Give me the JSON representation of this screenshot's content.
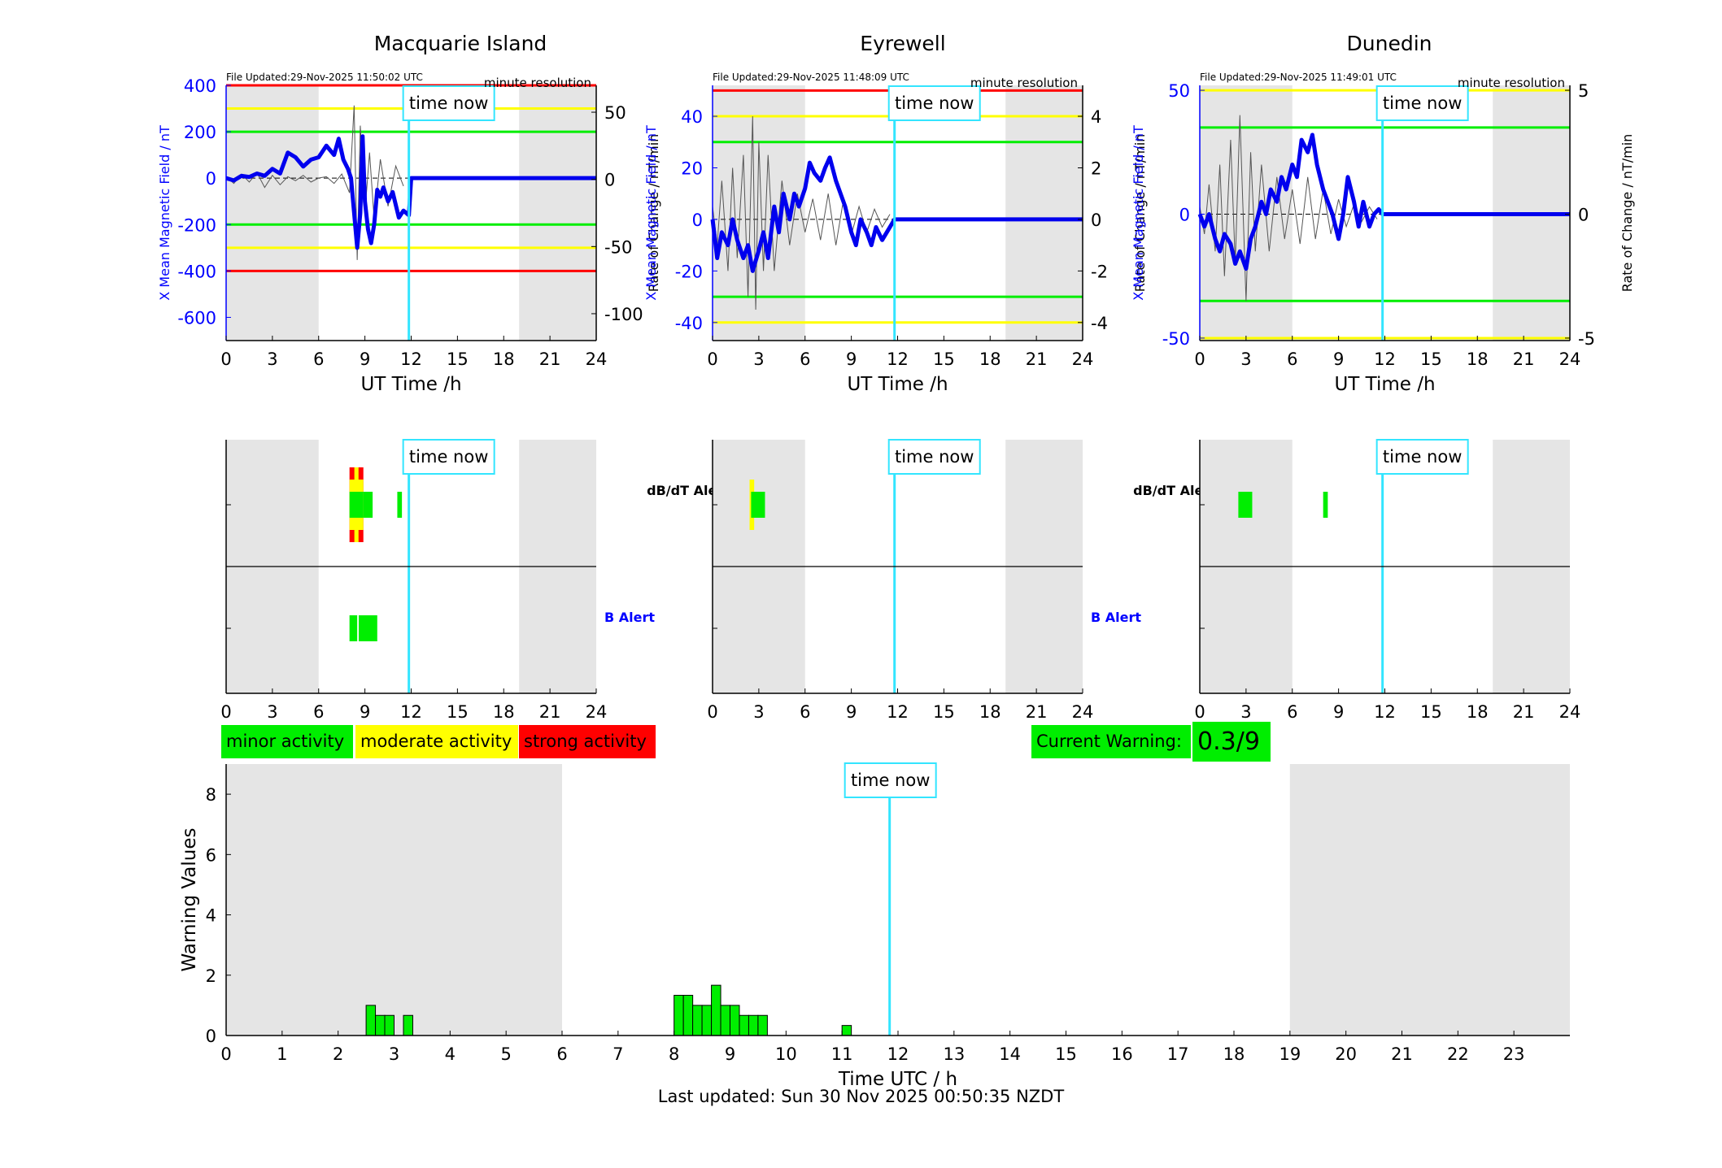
{
  "colors": {
    "shade": "#e5e5e5",
    "red": "#ff0000",
    "yellow": "#ffff00",
    "green": "#00ee00",
    "field": "#0000ee",
    "rate": "#555555",
    "now": "#33e5ff",
    "blue_text": "#0000ff"
  },
  "time_now_label": "time now",
  "footer": "Last updated: Sun 30 Nov 2025 00:50:35 NZDT",
  "legend": {
    "minor": "minor activity",
    "moderate": "moderate activity",
    "strong": "strong activity"
  },
  "current_warning": {
    "label": "Current Warning:",
    "value": "0.3/9"
  },
  "chart_data": [
    {
      "type": "line",
      "title": "Macquarie Island",
      "file_updated": "File Updated:29-Nov-2025 11:50:02 UTC",
      "resolution": "minute resolution",
      "xlabel": "UT Time /h",
      "ylabel_left": "X Mean Magnetic Field / nT",
      "ylabel_right": "Rate of Change / nT/min",
      "xlim": [
        0,
        24
      ],
      "xticks": [
        "0",
        "3",
        "6",
        "9",
        "12",
        "15",
        "18",
        "21",
        "24"
      ],
      "ylim_left": [
        -700,
        400
      ],
      "yticks_left": [
        "400",
        "200",
        "0",
        "-200",
        "-400",
        "-600"
      ],
      "ylim_right": [
        -120,
        70
      ],
      "yticks_right": [
        "50",
        "0",
        "-50",
        "-100"
      ],
      "thresholds": [
        {
          "color": "red",
          "value": 400
        },
        {
          "color": "red",
          "value": -400
        },
        {
          "color": "yellow",
          "value": 300
        },
        {
          "color": "yellow",
          "value": -300
        },
        {
          "color": "green",
          "value": 200
        },
        {
          "color": "green",
          "value": -200
        }
      ],
      "shaded_hours": [
        [
          0,
          6
        ],
        [
          19,
          24
        ]
      ],
      "time_now": 11.85,
      "field_series": {
        "x": [
          0,
          0.5,
          1,
          1.5,
          2,
          2.5,
          3,
          3.5,
          4,
          4.5,
          5,
          5.5,
          6,
          6.5,
          7,
          7.3,
          7.6,
          7.9,
          8.1,
          8.3,
          8.5,
          8.7,
          8.85,
          9,
          9.2,
          9.4,
          9.6,
          9.8,
          10,
          10.2,
          10.5,
          10.8,
          11.2,
          11.5,
          11.85,
          12,
          24
        ],
        "y": [
          0,
          -10,
          10,
          5,
          20,
          10,
          40,
          20,
          110,
          90,
          50,
          80,
          90,
          140,
          100,
          170,
          80,
          40,
          0,
          -150,
          -300,
          -150,
          180,
          -100,
          -220,
          -280,
          -200,
          -50,
          -80,
          -40,
          -100,
          -60,
          -170,
          -140,
          -160,
          0,
          0
        ]
      },
      "rate_series": {
        "x": [
          0,
          0.5,
          1,
          1.5,
          2,
          2.5,
          3,
          3.5,
          4,
          4.5,
          5,
          5.5,
          6,
          6.5,
          7,
          7.5,
          8,
          8.3,
          8.5,
          8.7,
          9,
          9.3,
          9.6,
          10,
          10.5,
          11,
          11.5
        ],
        "y": [
          2,
          -3,
          4,
          -2,
          5,
          -6,
          3,
          -4,
          2,
          -1,
          3,
          -2,
          1,
          2,
          -3,
          4,
          -10,
          55,
          -60,
          40,
          -25,
          20,
          -30,
          15,
          -20,
          10,
          -5
        ]
      },
      "alerts": {
        "dbdt_label": "dB/dT Alert",
        "b_label": "B Alert",
        "dbdt": [
          {
            "start": 8.0,
            "end": 8.9,
            "level": "green"
          },
          {
            "start": 8.0,
            "end": 8.9,
            "level": "yellow"
          },
          {
            "start": 8.0,
            "end": 8.9,
            "level": "red"
          },
          {
            "start": 8.9,
            "end": 9.5,
            "level": "green"
          },
          {
            "start": 11.1,
            "end": 11.4,
            "level": "green"
          }
        ],
        "b": [
          {
            "start": 8.0,
            "end": 8.5,
            "level": "green"
          },
          {
            "start": 8.6,
            "end": 9.8,
            "level": "green"
          }
        ]
      }
    },
    {
      "type": "line",
      "title": "Eyrewell",
      "file_updated": "File Updated:29-Nov-2025 11:48:09 UTC",
      "resolution": "minute resolution",
      "xlabel": "UT Time /h",
      "ylabel_left": "X Mean Magnetic Field / nT",
      "ylabel_right": "Rate of Change / nT/min",
      "xlim": [
        0,
        24
      ],
      "xticks": [
        "0",
        "3",
        "6",
        "9",
        "12",
        "15",
        "18",
        "21",
        "24"
      ],
      "ylim_left": [
        -47,
        52
      ],
      "yticks_left": [
        "40",
        "20",
        "0",
        "-20",
        "-40"
      ],
      "ylim_right": [
        -4.7,
        5.2
      ],
      "yticks_right": [
        "4",
        "2",
        "0",
        "-2",
        "-4"
      ],
      "thresholds": [
        {
          "color": "red",
          "value": 50
        },
        {
          "color": "yellow",
          "value": 40
        },
        {
          "color": "yellow",
          "value": -40
        },
        {
          "color": "green",
          "value": 30
        },
        {
          "color": "green",
          "value": -30
        }
      ],
      "shaded_hours": [
        [
          0,
          6
        ],
        [
          19,
          24
        ]
      ],
      "time_now": 11.8,
      "field_series": {
        "x": [
          0,
          0.3,
          0.6,
          1,
          1.3,
          1.6,
          2,
          2.3,
          2.6,
          3,
          3.3,
          3.6,
          4,
          4.3,
          4.6,
          5,
          5.3,
          5.6,
          6,
          6.3,
          6.6,
          7,
          7.3,
          7.6,
          8,
          8.3,
          8.6,
          9,
          9.3,
          9.6,
          10,
          10.3,
          10.6,
          11,
          11.3,
          11.6,
          11.8,
          12,
          24
        ],
        "y": [
          0,
          -15,
          -5,
          -10,
          0,
          -8,
          -15,
          -10,
          -20,
          -12,
          -5,
          -15,
          5,
          -5,
          10,
          0,
          10,
          5,
          12,
          22,
          18,
          15,
          20,
          24,
          15,
          10,
          5,
          -5,
          -10,
          0,
          -5,
          -10,
          -3,
          -8,
          -5,
          -2,
          0,
          0,
          0
        ]
      },
      "rate_series": {
        "x": [
          0,
          0.3,
          0.6,
          1,
          1.3,
          1.6,
          2,
          2.3,
          2.6,
          2.8,
          3,
          3.3,
          3.6,
          4,
          4.5,
          5,
          5.5,
          6,
          6.5,
          7,
          7.5,
          8,
          8.5,
          9,
          9.5,
          10,
          10.5,
          11,
          11.5
        ],
        "y": [
          0.5,
          -1,
          1.5,
          -2,
          2,
          -1.5,
          2.5,
          -3,
          4,
          -3.5,
          3,
          -2,
          2.5,
          -2,
          1.5,
          -1,
          1,
          -0.5,
          0.8,
          -0.8,
          1,
          -1,
          0.8,
          -0.6,
          0.5,
          -0.5,
          0.4,
          -0.3,
          0.2
        ]
      },
      "alerts": {
        "dbdt_label": "dB/dT Alert",
        "b_label": "B Alert",
        "dbdt": [
          {
            "start": 2.4,
            "end": 2.7,
            "level": "yellow"
          },
          {
            "start": 2.5,
            "end": 3.4,
            "level": "green"
          }
        ],
        "b": []
      }
    },
    {
      "type": "line",
      "title": "Dunedin",
      "file_updated": "File Updated:29-Nov-2025 11:49:01 UTC",
      "resolution": "minute resolution",
      "xlabel": "UT Time /h",
      "ylabel_left": "X Mean Magnetic Field / nT",
      "ylabel_right": "Rate of Change / nT/min",
      "xlim": [
        0,
        24
      ],
      "xticks": [
        "0",
        "3",
        "6",
        "9",
        "12",
        "15",
        "18",
        "21",
        "24"
      ],
      "ylim_left": [
        -51,
        52
      ],
      "yticks_left": [
        "50",
        "0",
        "-50"
      ],
      "ylim_right": [
        -5.1,
        5.2
      ],
      "yticks_right": [
        "5",
        "0",
        "-5"
      ],
      "thresholds": [
        {
          "color": "yellow",
          "value": 50
        },
        {
          "color": "yellow",
          "value": -50
        },
        {
          "color": "green",
          "value": 35
        },
        {
          "color": "green",
          "value": -35
        }
      ],
      "shaded_hours": [
        [
          0,
          6
        ],
        [
          19,
          24
        ]
      ],
      "time_now": 11.85,
      "field_series": {
        "x": [
          0,
          0.3,
          0.6,
          1,
          1.3,
          1.6,
          2,
          2.3,
          2.6,
          3,
          3.3,
          3.6,
          4,
          4.3,
          4.6,
          5,
          5.3,
          5.6,
          6,
          6.3,
          6.6,
          7,
          7.3,
          7.6,
          8,
          8.3,
          8.6,
          9,
          9.3,
          9.6,
          10,
          10.3,
          10.6,
          11,
          11.3,
          11.6,
          11.85,
          12,
          24
        ],
        "y": [
          0,
          -5,
          0,
          -10,
          -15,
          -8,
          -12,
          -20,
          -15,
          -22,
          -10,
          -5,
          5,
          0,
          10,
          5,
          15,
          10,
          20,
          15,
          30,
          25,
          32,
          20,
          10,
          5,
          0,
          -10,
          0,
          15,
          5,
          -5,
          5,
          -5,
          0,
          2,
          0,
          0,
          0
        ]
      },
      "rate_series": {
        "x": [
          0,
          0.3,
          0.6,
          1,
          1.3,
          1.6,
          2,
          2.3,
          2.6,
          3,
          3.3,
          3.6,
          4,
          4.5,
          5,
          5.5,
          6,
          6.5,
          7,
          7.5,
          8,
          8.5,
          9,
          9.5,
          10,
          10.5,
          11,
          11.5
        ],
        "y": [
          0.3,
          -0.8,
          1.2,
          -1.5,
          2,
          -2.5,
          3,
          -2,
          4,
          -3.5,
          2.5,
          -1.5,
          2,
          -1.5,
          1.5,
          -1,
          1,
          -1.2,
          1.5,
          -1,
          1,
          -0.8,
          0.6,
          -0.5,
          0.4,
          -0.3,
          0.3,
          -0.2
        ]
      },
      "alerts": {
        "dbdt_label": "dB/dT Alert",
        "b_label": "B Alert",
        "dbdt": [
          {
            "start": 2.5,
            "end": 3.4,
            "level": "green"
          },
          {
            "start": 8.0,
            "end": 8.3,
            "level": "green"
          }
        ],
        "b": []
      }
    },
    {
      "type": "bar",
      "xlabel": "Time UTC / h",
      "ylabel": "Warning Values",
      "xlim": [
        0,
        24
      ],
      "ylim": [
        0,
        9
      ],
      "xticks": [
        "0",
        "1",
        "2",
        "3",
        "4",
        "5",
        "6",
        "7",
        "8",
        "9",
        "10",
        "11",
        "12",
        "13",
        "14",
        "15",
        "16",
        "17",
        "18",
        "19",
        "20",
        "21",
        "22",
        "23"
      ],
      "yticks": [
        "0",
        "2",
        "4",
        "6",
        "8"
      ],
      "shaded_hours": [
        [
          0,
          6
        ],
        [
          19,
          24
        ]
      ],
      "time_now": 11.85,
      "bar_width_h": 0.1667,
      "bars": [
        {
          "x": 2.5,
          "value": 1.0
        },
        {
          "x": 2.667,
          "value": 0.667
        },
        {
          "x": 2.833,
          "value": 0.667
        },
        {
          "x": 3.167,
          "value": 0.667
        },
        {
          "x": 8.0,
          "value": 1.333
        },
        {
          "x": 8.167,
          "value": 1.333
        },
        {
          "x": 8.333,
          "value": 1.0
        },
        {
          "x": 8.5,
          "value": 1.0
        },
        {
          "x": 8.667,
          "value": 1.667
        },
        {
          "x": 8.833,
          "value": 1.0
        },
        {
          "x": 9.0,
          "value": 1.0
        },
        {
          "x": 9.167,
          "value": 0.667
        },
        {
          "x": 9.333,
          "value": 0.667
        },
        {
          "x": 9.5,
          "value": 0.667
        },
        {
          "x": 11.0,
          "value": 0.333
        }
      ]
    }
  ]
}
